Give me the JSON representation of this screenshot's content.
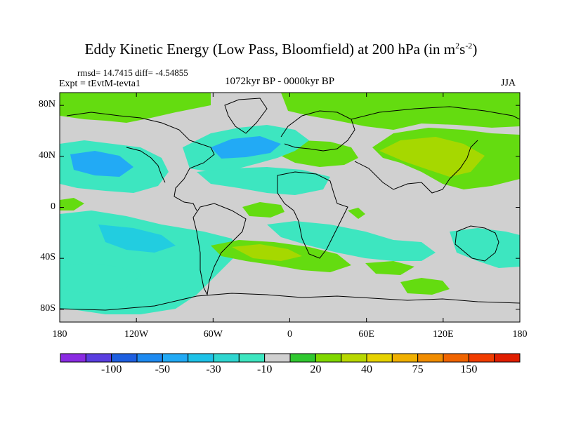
{
  "title": {
    "main": "Eddy Kinetic Energy (Low Pass, Bloomfield) at 200 hPa (in m",
    "exp1": "2",
    "mid": "s",
    "exp2": "-2",
    "end": ")"
  },
  "stats_line": "rmsd= 14.7415 diff= -4.54855",
  "experiment": "Expt = tEvtM-tevta1",
  "period": "1072kyr BP - 0000kyr BP",
  "season": "JJA",
  "map": {
    "lat_ticks": [
      "80N",
      "40N",
      "0",
      "40S",
      "80S"
    ],
    "lon_ticks": [
      "180",
      "120W",
      "60W",
      "0",
      "60E",
      "120E",
      "180"
    ],
    "lat_values": [
      80,
      40,
      0,
      -40,
      -80
    ],
    "lon_values": [
      -180,
      -120,
      -60,
      0,
      60,
      120,
      180
    ]
  },
  "colorbar": {
    "colors": [
      "#8a2be2",
      "#5a3ee0",
      "#1e5fe0",
      "#1e8af0",
      "#22aaf5",
      "#1ec2e8",
      "#2fd6d0",
      "#3de6c0",
      "#d0d0d0",
      "#30c830",
      "#80d800",
      "#b8d800",
      "#e6d200",
      "#f0b000",
      "#f08c00",
      "#f06400",
      "#f03c00",
      "#e01e00"
    ],
    "labels": [
      "-100",
      "-50",
      "-30",
      "-10",
      "20",
      "40",
      "75",
      "150"
    ]
  },
  "colors": {
    "neutral": "#d0d0d0",
    "negative_light": "#3de6c0",
    "negative_mid": "#22cde0",
    "negative_strong": "#22aaf5",
    "positive_light": "#64dc10",
    "positive_mid": "#a6d800"
  }
}
